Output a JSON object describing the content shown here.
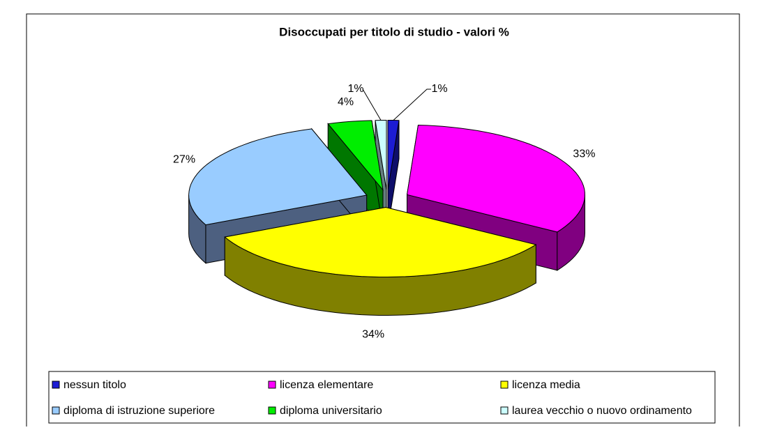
{
  "chart_data": {
    "type": "pie3d",
    "title": "Disoccupati per titolo di studio - valori %",
    "categories": [
      "nessun titolo",
      "licenza elementare",
      "licenza media",
      "diploma di istruzione superiore",
      "diploma universitario",
      "laurea vecchio o nuovo ordinamento"
    ],
    "values": [
      1,
      33,
      34,
      27,
      4,
      1
    ],
    "value_labels": [
      "1%",
      "33%",
      "34%",
      "27%",
      "4%",
      "1%"
    ],
    "colors": [
      "#1c1cd4",
      "#ff00ff",
      "#ffff00",
      "#99ccff",
      "#00ee00",
      "#ccffff"
    ],
    "side_colors": [
      "#0e0e6a",
      "#800080",
      "#808000",
      "#4d6080",
      "#007700",
      "#668080"
    ],
    "legend": "bottom"
  }
}
